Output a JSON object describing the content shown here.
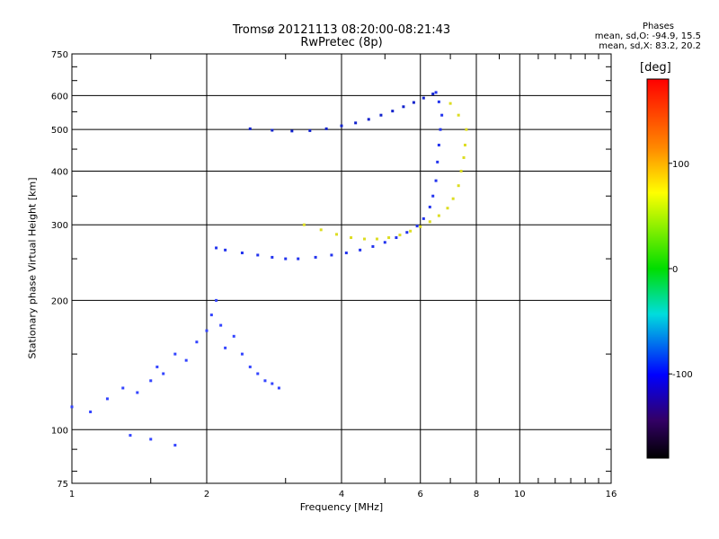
{
  "chart_data": {
    "type": "scatter",
    "title": "Tromsø 20121113 08:20:00-08:21:43",
    "subtitle": "RwPretec (8p)",
    "phase_stats": {
      "heading": "Phases",
      "line_o": "mean, sd,O: -94.9, 15.5",
      "line_x": "mean, sd,X:  83.2, 20.2"
    },
    "xlabel": "Frequency [MHz]",
    "ylabel": "Stationary phase Virtual Height [km]",
    "xscale": "log",
    "yscale": "log",
    "xlim": [
      1,
      16
    ],
    "ylim": [
      75,
      750
    ],
    "x_ticks": [
      1,
      2,
      4,
      6,
      8,
      10,
      16
    ],
    "x_tick_labels": [
      "1",
      "2",
      "4",
      "6",
      "8",
      "10",
      "16"
    ],
    "y_ticks": [
      75,
      100,
      200,
      300,
      400,
      500,
      600,
      750
    ],
    "y_tick_labels": [
      "75",
      "100",
      "200",
      "300",
      "400",
      "500",
      "600",
      "750"
    ],
    "grid": true,
    "colorbar": {
      "unit": "[deg]",
      "range": [
        -180,
        180
      ],
      "ticks": [
        100,
        0,
        -100
      ],
      "tick_labels": [
        "100",
        "0",
        "-100"
      ]
    },
    "series": [
      {
        "name": "",
        "color": "#2233ee",
        "points": [
          [
            2.1,
            265
          ],
          [
            2.2,
            262
          ],
          [
            2.4,
            258
          ],
          [
            2.6,
            255
          ],
          [
            2.8,
            252
          ],
          [
            3.0,
            250
          ],
          [
            3.2,
            250
          ],
          [
            3.5,
            252
          ],
          [
            3.8,
            255
          ],
          [
            4.1,
            258
          ],
          [
            4.4,
            262
          ],
          [
            4.7,
            267
          ],
          [
            5.0,
            273
          ],
          [
            5.3,
            280
          ],
          [
            5.6,
            288
          ],
          [
            5.9,
            298
          ],
          [
            6.1,
            310
          ],
          [
            6.3,
            330
          ],
          [
            6.4,
            350
          ],
          [
            6.5,
            380
          ],
          [
            6.55,
            420
          ],
          [
            6.6,
            460
          ],
          [
            6.65,
            500
          ],
          [
            6.7,
            540
          ],
          [
            6.6,
            580
          ],
          [
            6.5,
            610
          ]
        ]
      },
      {
        "name": "",
        "color": "#1122cc",
        "points": [
          [
            2.5,
            502
          ],
          [
            2.8,
            498
          ],
          [
            3.1,
            496
          ],
          [
            3.4,
            497
          ],
          [
            3.7,
            502
          ],
          [
            4.0,
            510
          ],
          [
            4.3,
            518
          ],
          [
            4.6,
            528
          ],
          [
            4.9,
            540
          ],
          [
            5.2,
            552
          ],
          [
            5.5,
            565
          ],
          [
            5.8,
            578
          ],
          [
            6.1,
            592
          ],
          [
            6.4,
            605
          ]
        ]
      },
      {
        "name": "",
        "color": "#dddd22",
        "points": [
          [
            3.3,
            300
          ],
          [
            3.6,
            292
          ],
          [
            3.9,
            285
          ],
          [
            4.2,
            280
          ],
          [
            4.5,
            278
          ],
          [
            4.8,
            278
          ],
          [
            5.1,
            280
          ],
          [
            5.4,
            284
          ],
          [
            5.7,
            290
          ],
          [
            6.0,
            297
          ],
          [
            6.3,
            305
          ],
          [
            6.6,
            315
          ],
          [
            6.9,
            328
          ],
          [
            7.1,
            345
          ],
          [
            7.3,
            370
          ],
          [
            7.4,
            400
          ],
          [
            7.5,
            430
          ],
          [
            7.55,
            460
          ],
          [
            7.6,
            500
          ],
          [
            7.3,
            540
          ],
          [
            7.0,
            575
          ]
        ]
      },
      {
        "name": "",
        "color": "#3344ff",
        "points": [
          [
            1.0,
            113
          ],
          [
            1.1,
            110
          ],
          [
            1.2,
            118
          ],
          [
            1.3,
            125
          ],
          [
            1.4,
            122
          ],
          [
            1.5,
            130
          ],
          [
            1.55,
            140
          ],
          [
            1.6,
            135
          ],
          [
            1.7,
            150
          ],
          [
            1.8,
            145
          ],
          [
            1.9,
            160
          ],
          [
            2.0,
            170
          ],
          [
            2.05,
            185
          ],
          [
            2.1,
            200
          ],
          [
            2.15,
            175
          ],
          [
            2.2,
            155
          ],
          [
            2.3,
            165
          ],
          [
            2.4,
            150
          ],
          [
            2.5,
            140
          ],
          [
            2.6,
            135
          ],
          [
            2.7,
            130
          ],
          [
            2.8,
            128
          ],
          [
            2.9,
            125
          ],
          [
            1.35,
            97
          ],
          [
            1.5,
            95
          ],
          [
            1.7,
            92
          ]
        ]
      }
    ]
  }
}
